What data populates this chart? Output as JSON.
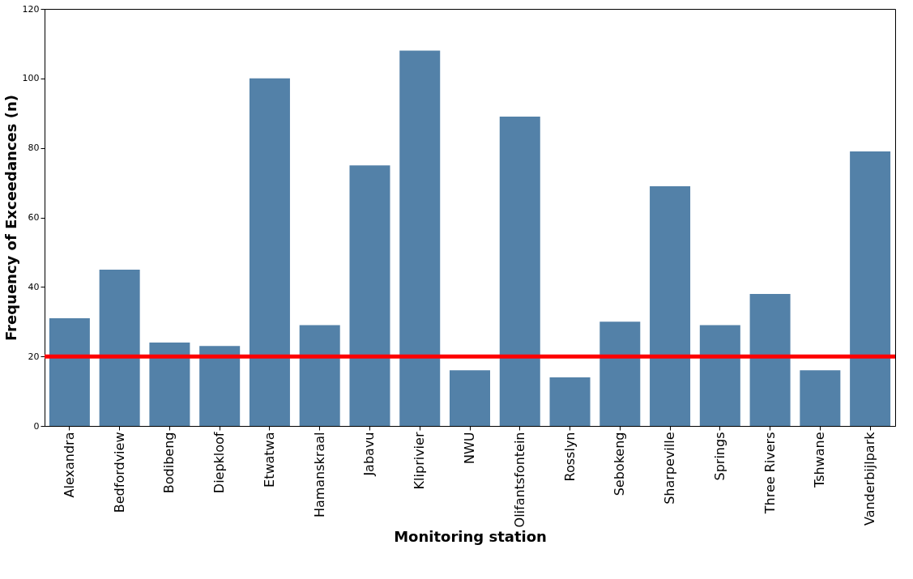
{
  "chart_data": {
    "type": "bar",
    "xlabel": "Monitoring station",
    "ylabel": "Frequency of Exceedances (n)",
    "categories": [
      "Alexandra",
      "Bedfordview",
      "Bodibeng",
      "Diepkloof",
      "Etwatwa",
      "Hamanskraal",
      "Jabavu",
      "Kliprivier",
      "NWU",
      "Olifantsfontein",
      "Rosslyn",
      "Sebokeng",
      "Sharpeville",
      "Springs",
      "Three Rivers",
      "Tshwane",
      "Vanderbijlpark"
    ],
    "values": [
      31,
      45,
      24,
      23,
      100,
      29,
      75,
      108,
      16,
      89,
      14,
      30,
      69,
      29,
      38,
      16,
      79
    ],
    "color": "#5381a8",
    "ylim": [
      0,
      120
    ],
    "yticks": [
      0,
      20,
      40,
      60,
      80,
      100,
      120
    ],
    "ref_lines": [
      {
        "axis": "y",
        "value": 20,
        "color": "#ff0000"
      }
    ],
    "grid": false
  }
}
